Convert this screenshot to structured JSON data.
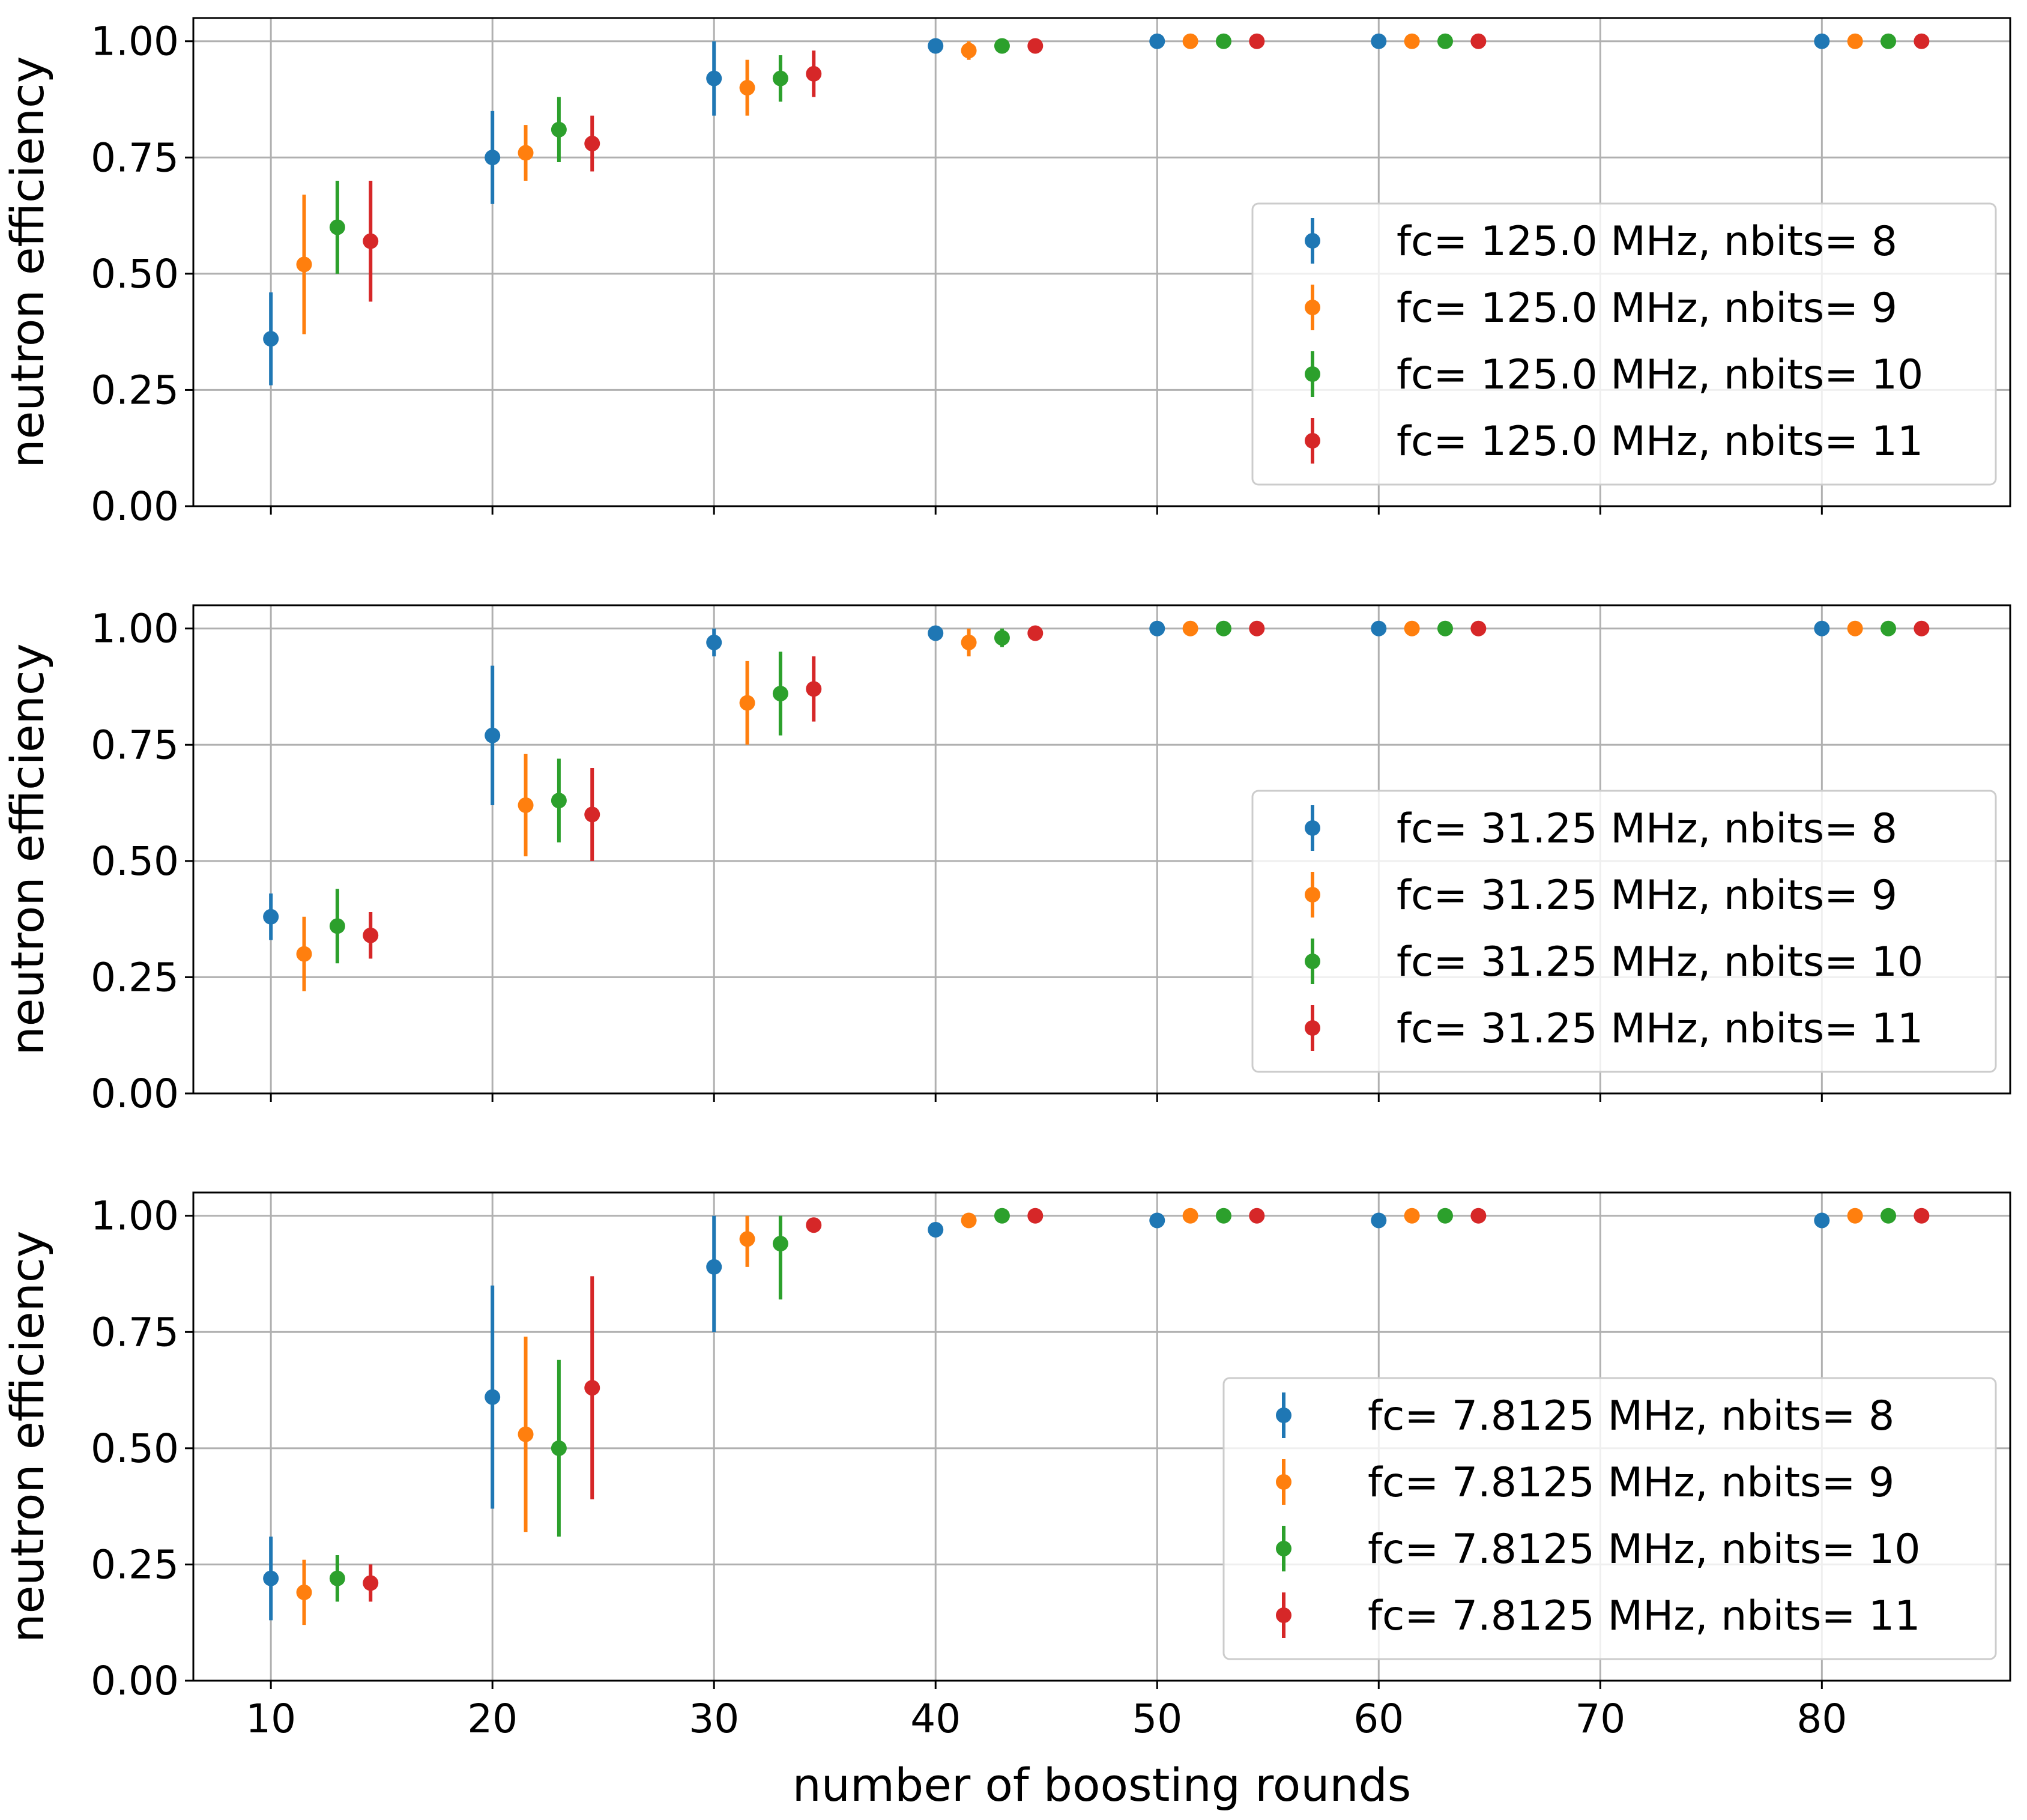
{
  "chart_data": [
    {
      "type": "scatter",
      "ylabel": "neutron efficiency",
      "xlabel": "",
      "ylim": [
        0.0,
        1.05
      ],
      "xlim": [
        6.5,
        88.5
      ],
      "yticks": [
        "0.00",
        "0.25",
        "0.50",
        "0.75",
        "1.00"
      ],
      "xticks": [],
      "grid": true,
      "legend_position": "lower-right",
      "x": [
        10,
        20,
        30,
        40,
        50,
        60,
        80
      ],
      "series": [
        {
          "name": "fc= 125.0 MHz, nbits= 8",
          "color": "#1f77b4",
          "x_offset": 0.0,
          "values": [
            0.36,
            0.75,
            0.92,
            0.99,
            1.0,
            1.0,
            1.0
          ],
          "errors": [
            0.1,
            0.1,
            0.08,
            0.01,
            0.0,
            0.0,
            0.0
          ]
        },
        {
          "name": "fc= 125.0 MHz, nbits= 9",
          "color": "#ff7f0e",
          "x_offset": 1.5,
          "values": [
            0.52,
            0.76,
            0.9,
            0.98,
            1.0,
            1.0,
            1.0
          ],
          "errors": [
            0.15,
            0.06,
            0.06,
            0.02,
            0.0,
            0.0,
            0.0
          ]
        },
        {
          "name": "fc= 125.0 MHz, nbits= 10",
          "color": "#2ca02c",
          "x_offset": 3.0,
          "values": [
            0.6,
            0.81,
            0.92,
            0.99,
            1.0,
            1.0,
            1.0
          ],
          "errors": [
            0.1,
            0.07,
            0.05,
            0.01,
            0.0,
            0.0,
            0.0
          ]
        },
        {
          "name": "fc= 125.0 MHz, nbits= 11",
          "color": "#d62728",
          "x_offset": 4.5,
          "values": [
            0.57,
            0.78,
            0.93,
            0.99,
            1.0,
            1.0,
            1.0
          ],
          "errors": [
            0.13,
            0.06,
            0.05,
            0.01,
            0.0,
            0.0,
            0.0
          ]
        }
      ]
    },
    {
      "type": "scatter",
      "ylabel": "neutron efficiency",
      "xlabel": "",
      "ylim": [
        0.0,
        1.05
      ],
      "xlim": [
        6.5,
        88.5
      ],
      "yticks": [
        "0.00",
        "0.25",
        "0.50",
        "0.75",
        "1.00"
      ],
      "xticks": [],
      "grid": true,
      "legend_position": "lower-right",
      "x": [
        10,
        20,
        30,
        40,
        50,
        60,
        80
      ],
      "series": [
        {
          "name": "fc= 31.25 MHz, nbits= 8",
          "color": "#1f77b4",
          "x_offset": 0.0,
          "values": [
            0.38,
            0.77,
            0.97,
            0.99,
            1.0,
            1.0,
            1.0
          ],
          "errors": [
            0.05,
            0.15,
            0.03,
            0.01,
            0.0,
            0.0,
            0.0
          ]
        },
        {
          "name": "fc= 31.25 MHz, nbits= 9",
          "color": "#ff7f0e",
          "x_offset": 1.5,
          "values": [
            0.3,
            0.62,
            0.84,
            0.97,
            1.0,
            1.0,
            1.0
          ],
          "errors": [
            0.08,
            0.11,
            0.09,
            0.03,
            0.0,
            0.0,
            0.0
          ]
        },
        {
          "name": "fc= 31.25 MHz, nbits= 10",
          "color": "#2ca02c",
          "x_offset": 3.0,
          "values": [
            0.36,
            0.63,
            0.86,
            0.98,
            1.0,
            1.0,
            1.0
          ],
          "errors": [
            0.08,
            0.09,
            0.09,
            0.02,
            0.0,
            0.0,
            0.0
          ]
        },
        {
          "name": "fc= 31.25 MHz, nbits= 11",
          "color": "#d62728",
          "x_offset": 4.5,
          "values": [
            0.34,
            0.6,
            0.87,
            0.99,
            1.0,
            1.0,
            1.0
          ],
          "errors": [
            0.05,
            0.1,
            0.07,
            0.01,
            0.0,
            0.0,
            0.0
          ]
        }
      ]
    },
    {
      "type": "scatter",
      "ylabel": "neutron efficiency",
      "xlabel": "number of boosting rounds",
      "ylim": [
        0.0,
        1.05
      ],
      "xlim": [
        6.5,
        88.5
      ],
      "yticks": [
        "0.00",
        "0.25",
        "0.50",
        "0.75",
        "1.00"
      ],
      "xticks": [
        "10",
        "20",
        "30",
        "40",
        "50",
        "60",
        "70",
        "80"
      ],
      "grid": true,
      "legend_position": "lower-right",
      "x": [
        10,
        20,
        30,
        40,
        50,
        60,
        80
      ],
      "series": [
        {
          "name": "fc= 7.8125 MHz, nbits= 8",
          "color": "#1f77b4",
          "x_offset": 0.0,
          "values": [
            0.22,
            0.61,
            0.89,
            0.97,
            0.99,
            0.99,
            0.99
          ],
          "errors": [
            0.09,
            0.24,
            0.14,
            0.0,
            0.0,
            0.0,
            0.0
          ]
        },
        {
          "name": "fc= 7.8125 MHz, nbits= 9",
          "color": "#ff7f0e",
          "x_offset": 1.5,
          "values": [
            0.19,
            0.53,
            0.95,
            0.99,
            1.0,
            1.0,
            1.0
          ],
          "errors": [
            0.07,
            0.21,
            0.06,
            0.0,
            0.0,
            0.0,
            0.0
          ]
        },
        {
          "name": "fc= 7.8125 MHz, nbits= 10",
          "color": "#2ca02c",
          "x_offset": 3.0,
          "values": [
            0.22,
            0.5,
            0.94,
            1.0,
            1.0,
            1.0,
            1.0
          ],
          "errors": [
            0.05,
            0.19,
            0.12,
            0.0,
            0.0,
            0.0,
            0.0
          ]
        },
        {
          "name": "fc= 7.8125 MHz, nbits= 11",
          "color": "#d62728",
          "x_offset": 4.5,
          "values": [
            0.21,
            0.63,
            0.98,
            1.0,
            1.0,
            1.0,
            1.0
          ],
          "errors": [
            0.04,
            0.24,
            0.0,
            0.0,
            0.0,
            0.0,
            0.0
          ]
        }
      ]
    }
  ]
}
